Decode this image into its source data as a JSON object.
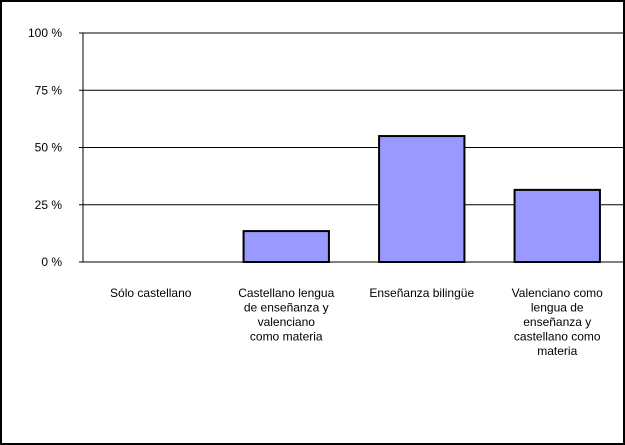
{
  "chart_data": {
    "type": "bar",
    "categories": [
      [
        "Sólo castellano"
      ],
      [
        "Castellano lengua",
        "de enseñanza y",
        "valenciano",
        "como materia"
      ],
      [
        "Enseñanza bilingüe"
      ],
      [
        "Valenciano como",
        "lengua de",
        "enseñanza y",
        "castellano como",
        "materia"
      ]
    ],
    "values": [
      0,
      13.5,
      55,
      31.5
    ],
    "ylim": [
      0,
      100
    ],
    "yticks": [
      0,
      25,
      50,
      75,
      100
    ],
    "ytick_labels": [
      "0 %",
      "25 %",
      "50 %",
      "75 %",
      "100 %"
    ],
    "grid": true,
    "colors": {
      "bar_fill": "#9999ff",
      "bar_stroke": "#000000",
      "grid": "#000000"
    }
  }
}
